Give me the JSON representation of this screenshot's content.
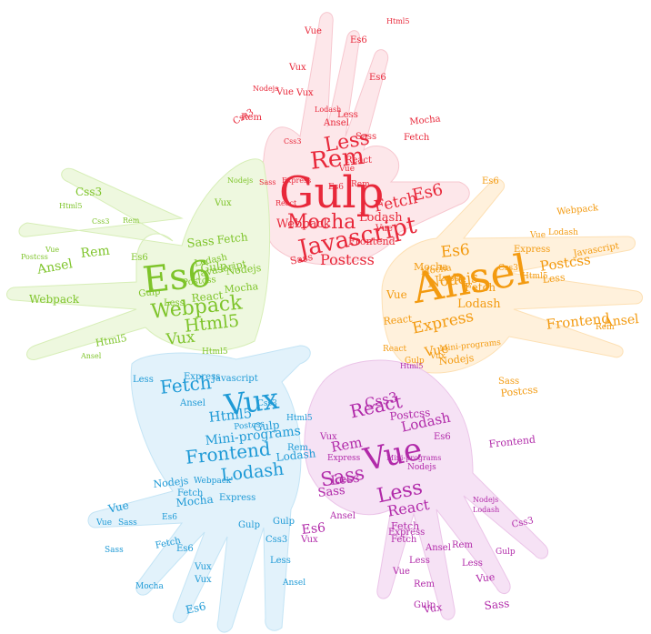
{
  "colors": {
    "red": "#e8283a",
    "green": "#7ec42a",
    "orange": "#f39a0f",
    "blue": "#1e9ad6",
    "purple": "#b12aa9"
  },
  "hands": [
    {
      "name": "red",
      "color": "#e8283a",
      "words": [
        "Gulp",
        "Javascript",
        "Rem",
        "Mocha",
        "Less",
        "Webpack",
        "Lodash",
        "Fetch",
        "Postcss",
        "Frontend",
        "Sass",
        "Es6",
        "Rem",
        "Vue",
        "Es6",
        "Vux",
        "Fetch",
        "Vue",
        "Es6",
        "Sass",
        "Less",
        "Vux",
        "Css3",
        "React",
        "Ansel",
        "Mocha",
        "Vue",
        "Html5",
        "Nodejs",
        "React",
        "Rem",
        "Es6",
        "Vue",
        "Express",
        "Sass",
        "Css3",
        "Lodash"
      ]
    },
    {
      "name": "green",
      "color": "#7ec42a",
      "words": [
        "Es6",
        "Webpack",
        "Vux",
        "Html5",
        "Ansel",
        "Rem",
        "Css3",
        "Sass",
        "Gulp",
        "React",
        "Javascript",
        "Nodejs",
        "Mocha",
        "Postcss",
        "Fetch",
        "Vux",
        "Lodash",
        "Webpack",
        "Html5",
        "Es6",
        "Gulp",
        "Less",
        "Postcss",
        "Html5",
        "Css3",
        "Rem",
        "Vue",
        "Nodejs",
        "Html5",
        "Ansel"
      ]
    },
    {
      "name": "orange",
      "color": "#f39a0f",
      "words": [
        "Ansel",
        "Postcss",
        "Express",
        "Vue",
        "Es6",
        "Nodejs",
        "Frontend",
        "Ansel",
        "Lodash",
        "Fetch",
        "Less",
        "Mocha",
        "Css3",
        "Mini-programs",
        "Postcss",
        "Nodejs",
        "React",
        "Vue",
        "Es6",
        "Rem",
        "Gulp",
        "Vux",
        "Express",
        "Javascript",
        "Webpack",
        "Lodash",
        "Vue",
        "Html5",
        "Less",
        "Mocha",
        "React",
        "Sass"
      ]
    },
    {
      "name": "blue",
      "color": "#1e9ad6",
      "words": [
        "Vux",
        "Fetch",
        "Frontend",
        "Lodash",
        "Html5",
        "Mini-programs",
        "Less",
        "Express",
        "Javascript",
        "Mocha",
        "Gulp",
        "Nodejs",
        "Vue",
        "Sass",
        "Ansel",
        "Express",
        "Fetch",
        "Es6",
        "Es6",
        "Vux",
        "Gulp",
        "Css3",
        "Less",
        "Ansel",
        "Mocha",
        "Sass",
        "Rem",
        "Postcss",
        "Html5",
        "Css3",
        "Webpack",
        "Vue",
        "Fetch",
        "Gulp",
        "Lodash",
        "Vux",
        "Es6"
      ]
    },
    {
      "name": "purple",
      "color": "#b12aa9",
      "words": [
        "Vue",
        "Sass",
        "Less",
        "React",
        "Css3",
        "Rem",
        "Lodash",
        "Postcss",
        "Frontend",
        "React",
        "Sass",
        "Less",
        "Es6",
        "Vux",
        "Ansel",
        "Express",
        "Fetch",
        "Gulp",
        "Rem",
        "Sass",
        "Vue",
        "Css3",
        "Lodash",
        "Nodejs",
        "Less",
        "Rem",
        "Ansel",
        "Gulp",
        "Vux",
        "Mini-programs",
        "Html5",
        "Es6",
        "Vux",
        "Less",
        "Fetch",
        "Express",
        "Nodejs",
        "Vue"
      ]
    }
  ]
}
